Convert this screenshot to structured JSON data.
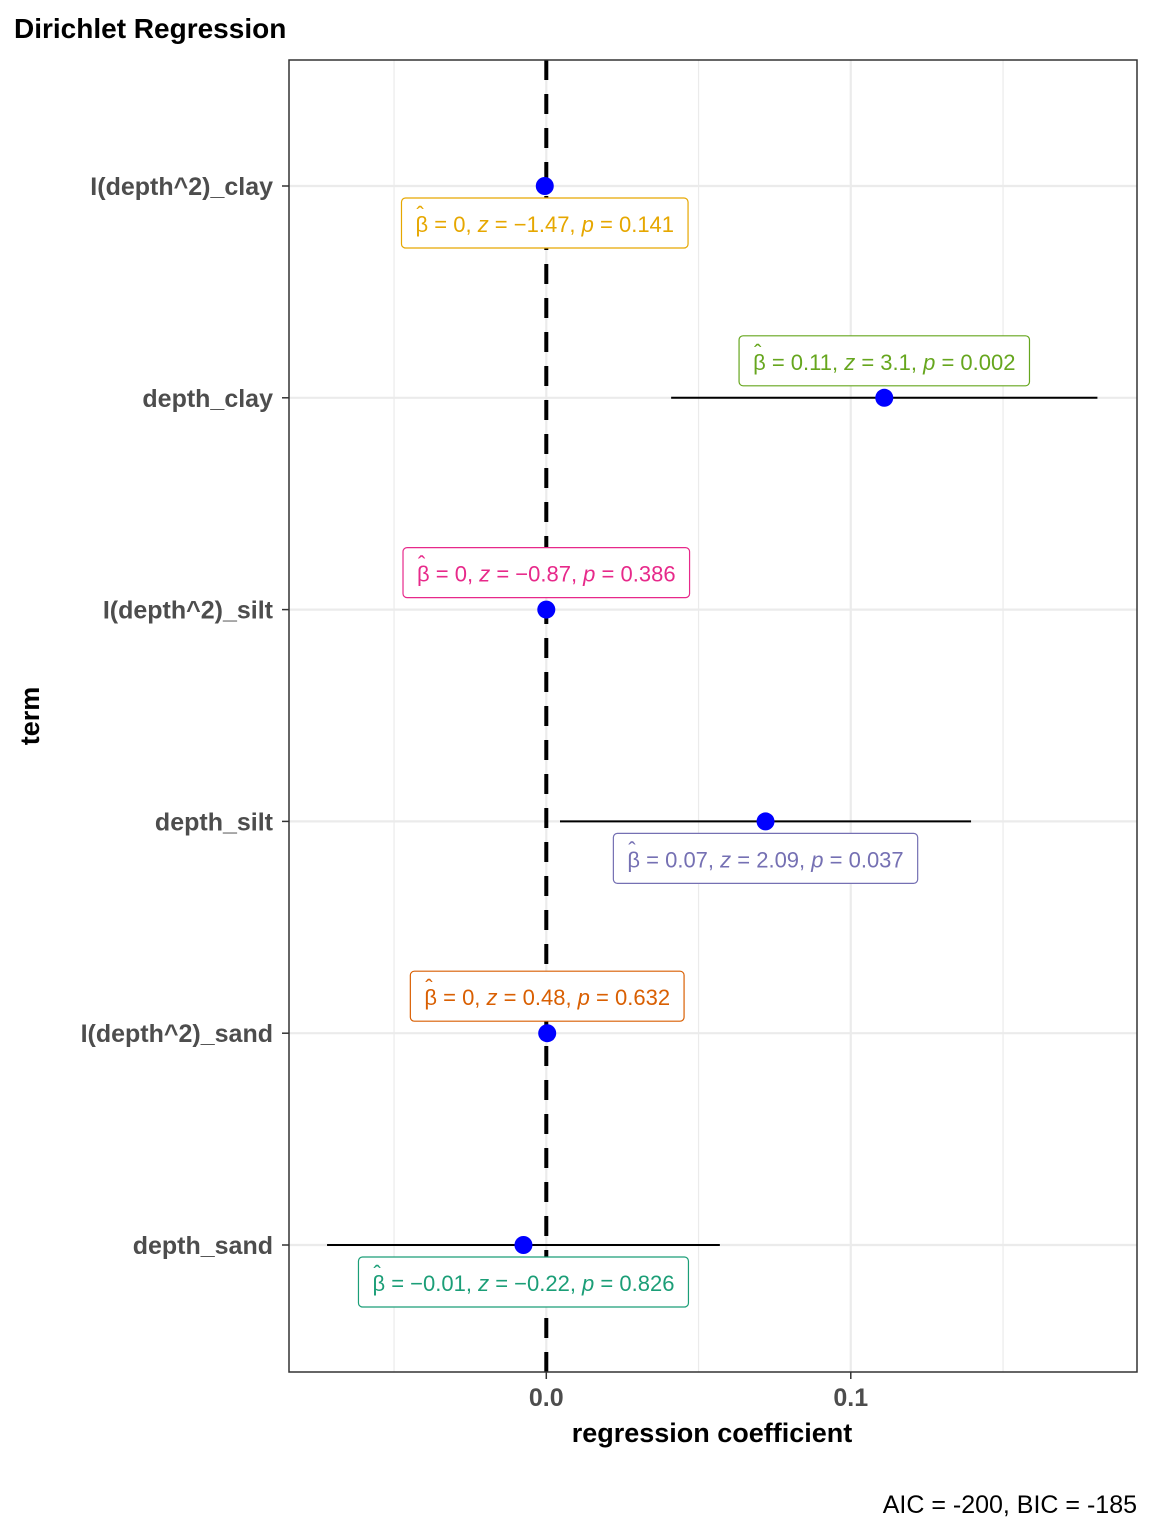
{
  "chart_data": {
    "type": "scatter",
    "title": "Dirichlet Regression",
    "xlabel": "regression coefficient",
    "ylabel": "term",
    "caption": "AIC = -200, BIC = -185",
    "xlim": [
      -0.0845,
      0.194
    ],
    "x_ticks": [
      0.0,
      0.1
    ],
    "x_tick_labels": [
      "0.0",
      "0.1"
    ],
    "reference_line_x": 0,
    "grid": true,
    "legend": "none",
    "point_color": "#0000ff",
    "terms": [
      {
        "term": "I(depth^2)_clay",
        "estimate": -0.0005,
        "ci_low": -0.0012,
        "ci_high": 0.0002,
        "label_position": "below",
        "annotation": {
          "beta": "0",
          "z": "−1.47",
          "p": "0.141",
          "color": "#e6a700"
        }
      },
      {
        "term": "depth_clay",
        "estimate": 0.111,
        "ci_low": 0.041,
        "ci_high": 0.181,
        "label_position": "above",
        "annotation": {
          "beta": "0.11",
          "z": "3.1",
          "p": "0.002",
          "color": "#66a61e"
        }
      },
      {
        "term": "I(depth^2)_silt",
        "estimate": 0.0,
        "ci_low": -0.0007,
        "ci_high": 0.0007,
        "label_position": "above",
        "annotation": {
          "beta": "0",
          "z": "−0.87",
          "p": "0.386",
          "color": "#e7298a"
        }
      },
      {
        "term": "depth_silt",
        "estimate": 0.072,
        "ci_low": 0.0045,
        "ci_high": 0.1395,
        "label_position": "below",
        "annotation": {
          "beta": "0.07",
          "z": "2.09",
          "p": "0.037",
          "color": "#7570b3"
        }
      },
      {
        "term": "I(depth^2)_sand",
        "estimate": 0.0003,
        "ci_low": -0.0005,
        "ci_high": 0.0011,
        "label_position": "above",
        "annotation": {
          "beta": "0",
          "z": "0.48",
          "p": "0.632",
          "color": "#d95f02"
        }
      },
      {
        "term": "depth_sand",
        "estimate": -0.0075,
        "ci_low": -0.072,
        "ci_high": 0.057,
        "label_position": "below",
        "annotation": {
          "beta": "−0.01",
          "z": "−0.22",
          "p": "0.826",
          "color": "#1b9e77"
        }
      }
    ]
  }
}
